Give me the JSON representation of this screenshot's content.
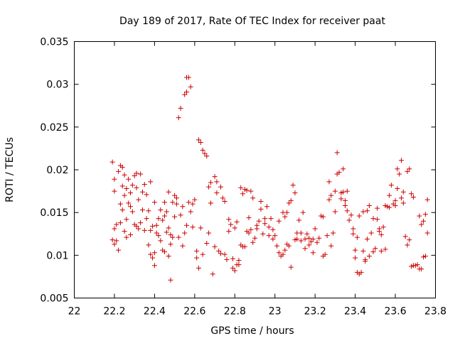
{
  "chart_data": {
    "type": "scatter",
    "title": "Day 189 of 2017, Rate Of TEC Index for receiver paat",
    "xlabel": "GPS time / hours",
    "ylabel": "ROTI / TECUs",
    "xlim": [
      22,
      23.8
    ],
    "ylim": [
      0.005,
      0.035
    ],
    "xticks": [
      22,
      22.2,
      22.4,
      22.6,
      22.8,
      23,
      23.2,
      23.4,
      23.6,
      23.8
    ],
    "xtick_labels": [
      "22",
      "22.2",
      "22.4",
      "22.6",
      "22.8",
      "23",
      "23.2",
      "23.4",
      "23.6",
      "23.8"
    ],
    "yticks": [
      0.005,
      0.01,
      0.015,
      0.02,
      0.025,
      0.03,
      0.035
    ],
    "ytick_labels": [
      "0.005",
      "0.01",
      "0.015",
      "0.02",
      "0.025",
      "0.03",
      "0.035"
    ],
    "grid": false,
    "legend": "none",
    "marker": "+",
    "marker_color": "#cc0000",
    "series": [
      {
        "name": "ROTI",
        "points": [
          [
            22.19,
            0.0209
          ],
          [
            22.19,
            0.0118
          ],
          [
            22.2,
            0.0113
          ],
          [
            22.2,
            0.0131
          ],
          [
            22.2,
            0.0175
          ],
          [
            22.2,
            0.0189
          ],
          [
            22.21,
            0.0117
          ],
          [
            22.21,
            0.0136
          ],
          [
            22.22,
            0.0106
          ],
          [
            22.22,
            0.0198
          ],
          [
            22.23,
            0.0138
          ],
          [
            22.23,
            0.0205
          ],
          [
            22.23,
            0.016
          ],
          [
            22.24,
            0.0153
          ],
          [
            22.24,
            0.0181
          ],
          [
            22.24,
            0.0203
          ],
          [
            22.25,
            0.0128
          ],
          [
            22.25,
            0.017
          ],
          [
            22.25,
            0.0194
          ],
          [
            22.26,
            0.0121
          ],
          [
            22.26,
            0.0142
          ],
          [
            22.26,
            0.0178
          ],
          [
            22.27,
            0.0161
          ],
          [
            22.27,
            0.0189
          ],
          [
            22.28,
            0.0124
          ],
          [
            22.28,
            0.0157
          ],
          [
            22.28,
            0.0173
          ],
          [
            22.29,
            0.0182
          ],
          [
            22.29,
            0.0151
          ],
          [
            22.3,
            0.0136
          ],
          [
            22.3,
            0.0193
          ],
          [
            22.31,
            0.0134
          ],
          [
            22.31,
            0.0179
          ],
          [
            22.31,
            0.0196
          ],
          [
            22.32,
            0.0131
          ],
          [
            22.32,
            0.0165
          ],
          [
            22.33,
            0.0195
          ],
          [
            22.33,
            0.0138
          ],
          [
            22.34,
            0.0153
          ],
          [
            22.34,
            0.0174
          ],
          [
            22.35,
            0.0183
          ],
          [
            22.35,
            0.0129
          ],
          [
            22.36,
            0.0143
          ],
          [
            22.36,
            0.0171
          ],
          [
            22.37,
            0.0112
          ],
          [
            22.37,
            0.0152
          ],
          [
            22.38,
            0.0186
          ],
          [
            22.38,
            0.0129
          ],
          [
            22.38,
            0.0101
          ],
          [
            22.39,
            0.0097
          ],
          [
            22.39,
            0.0134
          ],
          [
            22.4,
            0.0088
          ],
          [
            22.4,
            0.0103
          ],
          [
            22.4,
            0.0162
          ],
          [
            22.41,
            0.0126
          ],
          [
            22.41,
            0.0135
          ],
          [
            22.42,
            0.0123
          ],
          [
            22.42,
            0.0143
          ],
          [
            22.43,
            0.0117
          ],
          [
            22.43,
            0.0153
          ],
          [
            22.44,
            0.0106
          ],
          [
            22.44,
            0.0141
          ],
          [
            22.45,
            0.0162
          ],
          [
            22.45,
            0.0146
          ],
          [
            22.45,
            0.0104
          ],
          [
            22.46,
            0.0127
          ],
          [
            22.46,
            0.0151
          ],
          [
            22.47,
            0.0099
          ],
          [
            22.47,
            0.0132
          ],
          [
            22.47,
            0.0174
          ],
          [
            22.48,
            0.0071
          ],
          [
            22.48,
            0.0113
          ],
          [
            22.48,
            0.0124
          ],
          [
            22.49,
            0.0162
          ],
          [
            22.49,
            0.0121
          ],
          [
            22.5,
            0.0145
          ],
          [
            22.5,
            0.017
          ],
          [
            22.51,
            0.016
          ],
          [
            22.51,
            0.0167
          ],
          [
            22.52,
            0.0261
          ],
          [
            22.52,
            0.0121
          ],
          [
            22.53,
            0.0272
          ],
          [
            22.53,
            0.0147
          ],
          [
            22.54,
            0.0111
          ],
          [
            22.54,
            0.0157
          ],
          [
            22.55,
            0.0288
          ],
          [
            22.55,
            0.0126
          ],
          [
            22.56,
            0.0291
          ],
          [
            22.56,
            0.0135
          ],
          [
            22.56,
            0.0308
          ],
          [
            22.57,
            0.0308
          ],
          [
            22.57,
            0.0162
          ],
          [
            22.58,
            0.0297
          ],
          [
            22.58,
            0.0151
          ],
          [
            22.59,
            0.0133
          ],
          [
            22.59,
            0.016
          ],
          [
            22.6,
            0.0165
          ],
          [
            22.61,
            0.0105
          ],
          [
            22.61,
            0.0097
          ],
          [
            22.62,
            0.0235
          ],
          [
            22.62,
            0.0085
          ],
          [
            22.63,
            0.0232
          ],
          [
            22.63,
            0.0132
          ],
          [
            22.64,
            0.0223
          ],
          [
            22.64,
            0.0101
          ],
          [
            22.65,
            0.0219
          ],
          [
            22.66,
            0.0216
          ],
          [
            22.66,
            0.0114
          ],
          [
            22.67,
            0.018
          ],
          [
            22.67,
            0.0126
          ],
          [
            22.68,
            0.0185
          ],
          [
            22.68,
            0.0161
          ],
          [
            22.69,
            0.0078
          ],
          [
            22.7,
            0.0192
          ],
          [
            22.7,
            0.011
          ],
          [
            22.71,
            0.0173
          ],
          [
            22.71,
            0.0186
          ],
          [
            22.72,
            0.0105
          ],
          [
            22.73,
            0.018
          ],
          [
            22.73,
            0.0102
          ],
          [
            22.74,
            0.0167
          ],
          [
            22.75,
            0.0101
          ],
          [
            22.75,
            0.0163
          ],
          [
            22.76,
            0.0095
          ],
          [
            22.77,
            0.0142
          ],
          [
            22.77,
            0.0128
          ],
          [
            22.78,
            0.0136
          ],
          [
            22.79,
            0.0085
          ],
          [
            22.79,
            0.0096
          ],
          [
            22.8,
            0.0082
          ],
          [
            22.8,
            0.0132
          ],
          [
            22.81,
            0.0089
          ],
          [
            22.81,
            0.0139
          ],
          [
            22.82,
            0.0094
          ],
          [
            22.82,
            0.0089
          ],
          [
            22.83,
            0.0112
          ],
          [
            22.83,
            0.0179
          ],
          [
            22.84,
            0.011
          ],
          [
            22.84,
            0.0172
          ],
          [
            22.85,
            0.0177
          ],
          [
            22.85,
            0.011
          ],
          [
            22.86,
            0.0176
          ],
          [
            22.86,
            0.0128
          ],
          [
            22.87,
            0.0126
          ],
          [
            22.87,
            0.0144
          ],
          [
            22.88,
            0.013
          ],
          [
            22.88,
            0.0175
          ],
          [
            22.89,
            0.0115
          ],
          [
            22.89,
            0.0167
          ],
          [
            22.9,
            0.012
          ],
          [
            22.91,
            0.0135
          ],
          [
            22.91,
            0.0131
          ],
          [
            22.92,
            0.014
          ],
          [
            22.93,
            0.0154
          ],
          [
            22.93,
            0.0163
          ],
          [
            22.94,
            0.0125
          ],
          [
            22.95,
            0.0137
          ],
          [
            22.95,
            0.0143
          ],
          [
            22.96,
            0.0157
          ],
          [
            22.97,
            0.0133
          ],
          [
            22.97,
            0.0123
          ],
          [
            22.98,
            0.0143
          ],
          [
            22.99,
            0.013
          ],
          [
            22.99,
            0.0119
          ],
          [
            23.0,
            0.0123
          ],
          [
            23.01,
            0.0111
          ],
          [
            23.02,
            0.014
          ],
          [
            23.02,
            0.0103
          ],
          [
            23.03,
            0.0099
          ],
          [
            23.04,
            0.0101
          ],
          [
            23.04,
            0.015
          ],
          [
            23.05,
            0.0145
          ],
          [
            23.05,
            0.0106
          ],
          [
            23.06,
            0.015
          ],
          [
            23.06,
            0.0113
          ],
          [
            23.07,
            0.0161
          ],
          [
            23.07,
            0.0111
          ],
          [
            23.08,
            0.0086
          ],
          [
            23.08,
            0.0164
          ],
          [
            23.09,
            0.0182
          ],
          [
            23.1,
            0.0118
          ],
          [
            23.1,
            0.0173
          ],
          [
            23.11,
            0.0126
          ],
          [
            23.11,
            0.0119
          ],
          [
            23.12,
            0.0141
          ],
          [
            23.13,
            0.0117
          ],
          [
            23.13,
            0.0126
          ],
          [
            23.14,
            0.015
          ],
          [
            23.15,
            0.0119
          ],
          [
            23.15,
            0.0108
          ],
          [
            23.16,
            0.0125
          ],
          [
            23.17,
            0.012
          ],
          [
            23.17,
            0.0112
          ],
          [
            23.18,
            0.0116
          ],
          [
            23.19,
            0.0103
          ],
          [
            23.19,
            0.0119
          ],
          [
            23.2,
            0.0131
          ],
          [
            23.21,
            0.0115
          ],
          [
            23.22,
            0.012
          ],
          [
            23.23,
            0.0146
          ],
          [
            23.24,
            0.0145
          ],
          [
            23.24,
            0.0099
          ],
          [
            23.25,
            0.0101
          ],
          [
            23.26,
            0.0123
          ],
          [
            23.27,
            0.0165
          ],
          [
            23.27,
            0.0186
          ],
          [
            23.28,
            0.0111
          ],
          [
            23.28,
            0.017
          ],
          [
            23.29,
            0.0126
          ],
          [
            23.3,
            0.0175
          ],
          [
            23.3,
            0.0151
          ],
          [
            23.31,
            0.022
          ],
          [
            23.31,
            0.0195
          ],
          [
            23.32,
            0.0197
          ],
          [
            23.33,
            0.0173
          ],
          [
            23.33,
            0.0166
          ],
          [
            23.34,
            0.0201
          ],
          [
            23.34,
            0.0174
          ],
          [
            23.35,
            0.0158
          ],
          [
            23.35,
            0.0164
          ],
          [
            23.36,
            0.0175
          ],
          [
            23.36,
            0.0152
          ],
          [
            23.37,
            0.0141
          ],
          [
            23.38,
            0.0147
          ],
          [
            23.39,
            0.0131
          ],
          [
            23.39,
            0.0125
          ],
          [
            23.4,
            0.0097
          ],
          [
            23.4,
            0.0106
          ],
          [
            23.41,
            0.0121
          ],
          [
            23.41,
            0.008
          ],
          [
            23.42,
            0.0146
          ],
          [
            23.42,
            0.0078
          ],
          [
            23.43,
            0.008
          ],
          [
            23.44,
            0.0105
          ],
          [
            23.44,
            0.0151
          ],
          [
            23.45,
            0.0095
          ],
          [
            23.45,
            0.0093
          ],
          [
            23.46,
            0.0152
          ],
          [
            23.46,
            0.0119
          ],
          [
            23.47,
            0.0158
          ],
          [
            23.47,
            0.0099
          ],
          [
            23.48,
            0.0126
          ],
          [
            23.49,
            0.0104
          ],
          [
            23.49,
            0.0143
          ],
          [
            23.5,
            0.0108
          ],
          [
            23.51,
            0.0142
          ],
          [
            23.51,
            0.0155
          ],
          [
            23.52,
            0.0128
          ],
          [
            23.52,
            0.0131
          ],
          [
            23.53,
            0.0105
          ],
          [
            23.53,
            0.0124
          ],
          [
            23.54,
            0.0133
          ],
          [
            23.55,
            0.0107
          ],
          [
            23.55,
            0.0158
          ],
          [
            23.56,
            0.0157
          ],
          [
            23.57,
            0.0156
          ],
          [
            23.57,
            0.017
          ],
          [
            23.58,
            0.0182
          ],
          [
            23.59,
            0.016
          ],
          [
            23.6,
            0.0158
          ],
          [
            23.6,
            0.0164
          ],
          [
            23.61,
            0.0178
          ],
          [
            23.61,
            0.0201
          ],
          [
            23.62,
            0.0195
          ],
          [
            23.63,
            0.0167
          ],
          [
            23.63,
            0.0211
          ],
          [
            23.64,
            0.0174
          ],
          [
            23.64,
            0.0161
          ],
          [
            23.65,
            0.0122
          ],
          [
            23.66,
            0.0112
          ],
          [
            23.66,
            0.0198
          ],
          [
            23.67,
            0.0201
          ],
          [
            23.67,
            0.0118
          ],
          [
            23.68,
            0.0172
          ],
          [
            23.68,
            0.0087
          ],
          [
            23.69,
            0.0088
          ],
          [
            23.69,
            0.0168
          ],
          [
            23.7,
            0.0088
          ],
          [
            23.71,
            0.0089
          ],
          [
            23.72,
            0.0084
          ],
          [
            23.72,
            0.0146
          ],
          [
            23.73,
            0.0136
          ],
          [
            23.73,
            0.0084
          ],
          [
            23.74,
            0.014
          ],
          [
            23.74,
            0.0098
          ],
          [
            23.75,
            0.0099
          ],
          [
            23.75,
            0.0148
          ],
          [
            23.76,
            0.0165
          ],
          [
            23.76,
            0.0126
          ]
        ]
      }
    ]
  }
}
